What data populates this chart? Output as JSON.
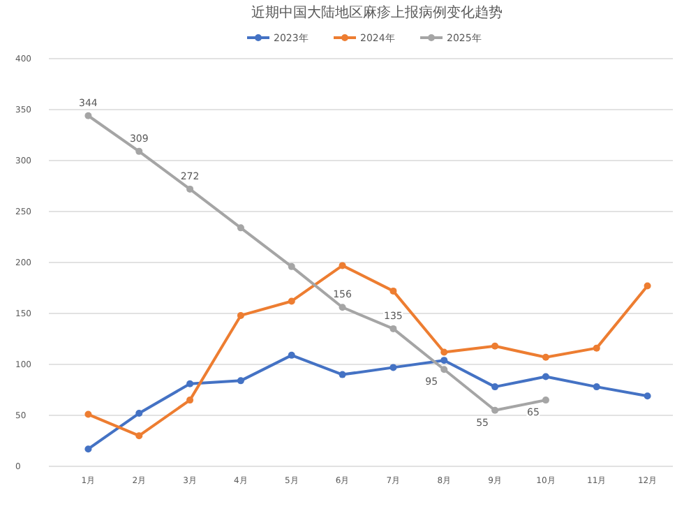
{
  "chart_data": {
    "type": "line",
    "title": "近期中国大陆地区麻疹上报病例变化趋势",
    "categories": [
      "1月",
      "2月",
      "3月",
      "4月",
      "5月",
      "6月",
      "7月",
      "8月",
      "9月",
      "10月",
      "11月",
      "12月"
    ],
    "series": [
      {
        "name": "2023年",
        "color": "#4472c4",
        "values": [
          17,
          52,
          81,
          84,
          109,
          90,
          97,
          104,
          78,
          88,
          78,
          69
        ]
      },
      {
        "name": "2024年",
        "color": "#ed7d31",
        "values": [
          51,
          30,
          65,
          148,
          162,
          197,
          172,
          112,
          118,
          107,
          116,
          177
        ]
      },
      {
        "name": "2025年",
        "color": "#a5a5a5",
        "values": [
          344,
          309,
          272,
          234,
          196,
          156,
          135,
          95,
          55,
          65,
          null,
          null
        ],
        "value_labels": [
          "344",
          "309",
          "272",
          null,
          null,
          "156",
          "135",
          "95",
          "55",
          "65",
          null,
          null
        ]
      }
    ],
    "ylim": [
      0,
      400
    ],
    "yticks": [
      0,
      50,
      100,
      150,
      200,
      250,
      300,
      350,
      400
    ],
    "grid": "y",
    "legend": "top",
    "marker": "circle",
    "line_style": "solid"
  }
}
